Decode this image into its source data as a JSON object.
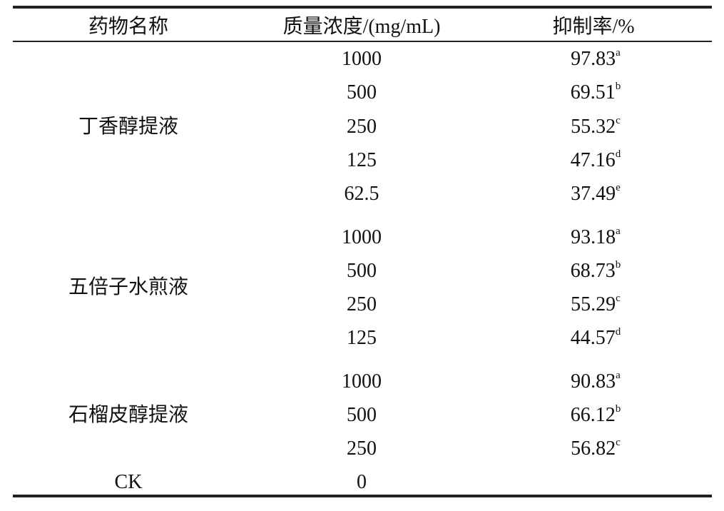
{
  "table": {
    "columns": [
      "药物名称",
      "质量浓度/(mg/mL)",
      "抑制率/%"
    ],
    "groups": [
      {
        "name": "丁香醇提液",
        "rows": [
          {
            "concentration": "1000",
            "rate": "97.83",
            "sup": "a"
          },
          {
            "concentration": "500",
            "rate": "69.51",
            "sup": "b"
          },
          {
            "concentration": "250",
            "rate": "55.32",
            "sup": "c"
          },
          {
            "concentration": "125",
            "rate": "47.16",
            "sup": "d"
          },
          {
            "concentration": "62.5",
            "rate": "37.49",
            "sup": "e"
          }
        ]
      },
      {
        "name": "五倍子水煎液",
        "rows": [
          {
            "concentration": "1000",
            "rate": "93.18",
            "sup": "a"
          },
          {
            "concentration": "500",
            "rate": "68.73",
            "sup": "b"
          },
          {
            "concentration": "250",
            "rate": "55.29",
            "sup": "c"
          },
          {
            "concentration": "125",
            "rate": "44.57",
            "sup": "d"
          }
        ]
      },
      {
        "name": "石榴皮醇提液",
        "rows": [
          {
            "concentration": "1000",
            "rate": "90.83",
            "sup": "a"
          },
          {
            "concentration": "500",
            "rate": "66.12",
            "sup": "b"
          },
          {
            "concentration": "250",
            "rate": "56.82",
            "sup": "c"
          }
        ]
      }
    ],
    "control": {
      "name": "CK",
      "concentration": "0"
    }
  }
}
